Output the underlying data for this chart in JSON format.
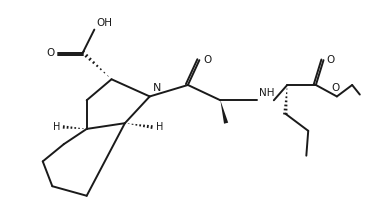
{
  "bg_color": "#ffffff",
  "line_color": "#1a1a1a",
  "lw": 1.4,
  "figsize": [
    3.72,
    2.12
  ],
  "dpi": 100,
  "xlim": [
    -5,
    377
  ],
  "ylim": [
    -5,
    217
  ]
}
